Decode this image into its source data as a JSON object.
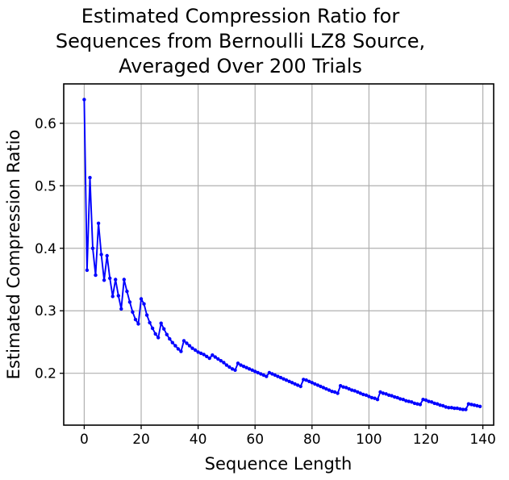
{
  "figure": {
    "background": "#ffffff"
  },
  "chart_data": {
    "type": "line",
    "title": "Estimated Compression Ratio for\nSequences from Bernoulli LZ8 Source,\nAveraged Over 200 Trials",
    "xlabel": "Sequence Length",
    "ylabel": "Estimated Compression Ratio",
    "xlim": [
      -7.2,
      143.8
    ],
    "ylim": [
      0.117,
      0.663
    ],
    "xticks": [
      0,
      20,
      40,
      60,
      80,
      100,
      120,
      140
    ],
    "yticks": [
      0.2,
      0.3,
      0.4,
      0.5,
      0.6
    ],
    "grid": true,
    "grid_color": "#b0b0b0",
    "legend": "none",
    "series": [
      {
        "name": "estimated-compression-ratio",
        "color": "#0000ff",
        "marker": "circle",
        "x": [
          0,
          1,
          2,
          3,
          4,
          5,
          6,
          7,
          8,
          9,
          10,
          11,
          12,
          13,
          14,
          15,
          16,
          17,
          18,
          19,
          20,
          21,
          22,
          23,
          24,
          25,
          26,
          27,
          28,
          29,
          30,
          31,
          32,
          33,
          34,
          35,
          36,
          37,
          38,
          39,
          40,
          41,
          42,
          43,
          44,
          45,
          46,
          47,
          48,
          49,
          50,
          51,
          52,
          53,
          54,
          55,
          56,
          57,
          58,
          59,
          60,
          61,
          62,
          63,
          64,
          65,
          66,
          67,
          68,
          69,
          70,
          71,
          72,
          73,
          74,
          75,
          76,
          77,
          78,
          79,
          80,
          81,
          82,
          83,
          84,
          85,
          86,
          87,
          88,
          89,
          90,
          91,
          92,
          93,
          94,
          95,
          96,
          97,
          98,
          99,
          100,
          101,
          102,
          103,
          104,
          105,
          106,
          107,
          108,
          109,
          110,
          111,
          112,
          113,
          114,
          115,
          116,
          117,
          118,
          119,
          120,
          121,
          122,
          123,
          124,
          125,
          126,
          127,
          128,
          129,
          130,
          131,
          132,
          133,
          134,
          135,
          136,
          137,
          138,
          139
        ],
        "y": [
          0.638,
          0.365,
          0.513,
          0.4,
          0.357,
          0.44,
          0.39,
          0.349,
          0.388,
          0.352,
          0.323,
          0.35,
          0.324,
          0.303,
          0.35,
          0.331,
          0.314,
          0.298,
          0.286,
          0.279,
          0.319,
          0.311,
          0.293,
          0.281,
          0.272,
          0.263,
          0.257,
          0.28,
          0.271,
          0.262,
          0.255,
          0.249,
          0.244,
          0.239,
          0.235,
          0.252,
          0.248,
          0.244,
          0.24,
          0.237,
          0.234,
          0.232,
          0.23,
          0.227,
          0.224,
          0.229,
          0.226,
          0.223,
          0.22,
          0.217,
          0.213,
          0.21,
          0.207,
          0.205,
          0.216,
          0.213,
          0.211,
          0.209,
          0.207,
          0.205,
          0.203,
          0.201,
          0.199,
          0.197,
          0.195,
          0.201,
          0.199,
          0.197,
          0.195,
          0.193,
          0.191,
          0.189,
          0.187,
          0.185,
          0.183,
          0.181,
          0.179,
          0.19,
          0.189,
          0.187,
          0.185,
          0.183,
          0.181,
          0.179,
          0.177,
          0.175,
          0.173,
          0.171,
          0.17,
          0.168,
          0.18,
          0.178,
          0.177,
          0.175,
          0.173,
          0.172,
          0.17,
          0.168,
          0.166,
          0.165,
          0.163,
          0.161,
          0.16,
          0.158,
          0.17,
          0.168,
          0.167,
          0.165,
          0.164,
          0.162,
          0.161,
          0.159,
          0.158,
          0.156,
          0.155,
          0.154,
          0.152,
          0.151,
          0.15,
          0.158,
          0.157,
          0.155,
          0.154,
          0.152,
          0.151,
          0.149,
          0.148,
          0.146,
          0.145,
          0.145,
          0.144,
          0.144,
          0.143,
          0.142,
          0.142,
          0.151,
          0.15,
          0.149,
          0.148,
          0.147
        ]
      }
    ]
  }
}
